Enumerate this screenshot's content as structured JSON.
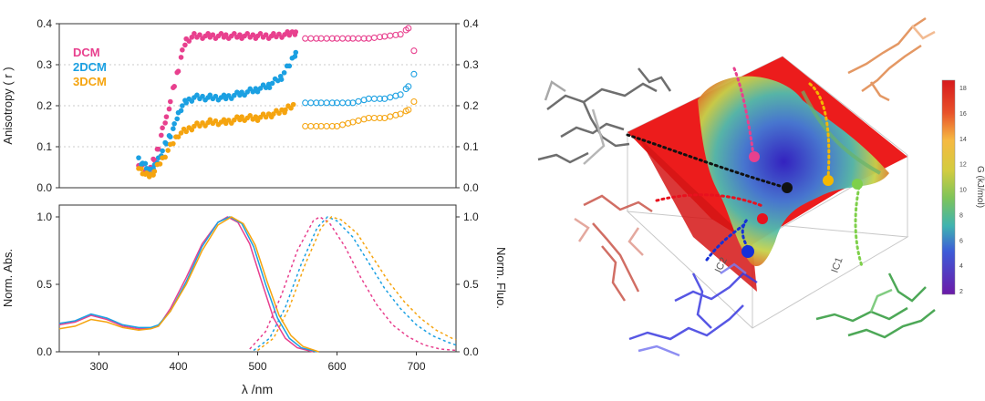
{
  "chart_data": [
    {
      "type": "scatter",
      "title": "",
      "xlabel": "",
      "ylabel": "Anisotropy ( r )",
      "xlim": [
        250,
        750
      ],
      "ylim": [
        0,
        0.4
      ],
      "yticks": [
        "0.0",
        "0.1",
        "0.2",
        "0.3",
        "0.4"
      ],
      "grid": "horizontal dotted",
      "legend_position": "top-left",
      "series": [
        {
          "name": "DCM",
          "color": "#e8408e",
          "filled_points": [
            [
              350,
              0.06
            ],
            [
              355,
              0.05
            ],
            [
              360,
              0.04
            ],
            [
              365,
              0.05
            ],
            [
              370,
              0.07
            ],
            [
              375,
              0.1
            ],
            [
              380,
              0.14
            ],
            [
              385,
              0.17
            ],
            [
              390,
              0.21
            ],
            [
              395,
              0.25
            ],
            [
              400,
              0.29
            ],
            [
              405,
              0.33
            ],
            [
              410,
              0.36
            ],
            [
              420,
              0.37
            ],
            [
              440,
              0.37
            ],
            [
              460,
              0.37
            ],
            [
              480,
              0.37
            ],
            [
              500,
              0.37
            ],
            [
              520,
              0.37
            ],
            [
              540,
              0.375
            ],
            [
              548,
              0.38
            ]
          ],
          "open_points": [
            [
              560,
              0.37
            ],
            [
              580,
              0.37
            ],
            [
              600,
              0.37
            ],
            [
              620,
              0.37
            ],
            [
              640,
              0.37
            ],
            [
              660,
              0.375
            ],
            [
              680,
              0.38
            ],
            [
              690,
              0.395
            ],
            [
              697,
              0.34
            ]
          ]
        },
        {
          "name": "2DCM",
          "color": "#1ba0e2",
          "filled_points": [
            [
              350,
              0.07
            ],
            [
              355,
              0.06
            ],
            [
              360,
              0.05
            ],
            [
              365,
              0.04
            ],
            [
              370,
              0.05
            ],
            [
              375,
              0.07
            ],
            [
              380,
              0.09
            ],
            [
              385,
              0.11
            ],
            [
              390,
              0.13
            ],
            [
              395,
              0.15
            ],
            [
              400,
              0.18
            ],
            [
              405,
              0.2
            ],
            [
              410,
              0.21
            ],
            [
              420,
              0.22
            ],
            [
              440,
              0.22
            ],
            [
              460,
              0.22
            ],
            [
              480,
              0.23
            ],
            [
              500,
              0.24
            ],
            [
              515,
              0.25
            ],
            [
              530,
              0.27
            ],
            [
              540,
              0.3
            ],
            [
              548,
              0.33
            ]
          ],
          "open_points": [
            [
              560,
              0.21
            ],
            [
              580,
              0.21
            ],
            [
              600,
              0.21
            ],
            [
              620,
              0.21
            ],
            [
              640,
              0.22
            ],
            [
              660,
              0.22
            ],
            [
              680,
              0.23
            ],
            [
              690,
              0.25
            ],
            [
              697,
              0.28
            ]
          ]
        },
        {
          "name": "3DCM",
          "color": "#f5a40f",
          "filled_points": [
            [
              350,
              0.05
            ],
            [
              355,
              0.04
            ],
            [
              360,
              0.03
            ],
            [
              365,
              0.03
            ],
            [
              370,
              0.04
            ],
            [
              380,
              0.07
            ],
            [
              390,
              0.1
            ],
            [
              400,
              0.13
            ],
            [
              410,
              0.14
            ],
            [
              420,
              0.15
            ],
            [
              440,
              0.16
            ],
            [
              460,
              0.16
            ],
            [
              480,
              0.17
            ],
            [
              500,
              0.17
            ],
            [
              520,
              0.18
            ],
            [
              535,
              0.19
            ],
            [
              545,
              0.2
            ]
          ],
          "open_points": [
            [
              560,
              0.15
            ],
            [
              580,
              0.15
            ],
            [
              600,
              0.15
            ],
            [
              620,
              0.16
            ],
            [
              640,
              0.17
            ],
            [
              660,
              0.17
            ],
            [
              680,
              0.18
            ],
            [
              690,
              0.19
            ],
            [
              697,
              0.21
            ]
          ]
        }
      ]
    },
    {
      "type": "line",
      "title": "",
      "xlabel": "λ /nm",
      "ylabel_left": "Norm. Abs.",
      "ylabel_right": "Norm. Fluo.",
      "xlim": [
        250,
        750
      ],
      "ylim": [
        0,
        1.0
      ],
      "xticks": [
        "300",
        "400",
        "500",
        "600",
        "700"
      ],
      "yticks": [
        "0.0",
        "0.5",
        "1.0"
      ],
      "series": [
        {
          "name": "",
          "kind": "absorption",
          "color": "#e8408e",
          "points": [
            [
              250,
              0.2
            ],
            [
              270,
              0.22
            ],
            [
              290,
              0.27
            ],
            [
              310,
              0.24
            ],
            [
              330,
              0.19
            ],
            [
              350,
              0.17
            ],
            [
              365,
              0.17
            ],
            [
              375,
              0.19
            ],
            [
              390,
              0.32
            ],
            [
              410,
              0.55
            ],
            [
              430,
              0.8
            ],
            [
              450,
              0.96
            ],
            [
              462,
              1.0
            ],
            [
              475,
              0.96
            ],
            [
              490,
              0.8
            ],
            [
              505,
              0.52
            ],
            [
              520,
              0.25
            ],
            [
              535,
              0.1
            ],
            [
              550,
              0.03
            ],
            [
              570,
              0.0
            ]
          ]
        },
        {
          "name": "",
          "kind": "absorption",
          "color": "#1ba0e2",
          "points": [
            [
              250,
              0.21
            ],
            [
              270,
              0.23
            ],
            [
              290,
              0.28
            ],
            [
              310,
              0.25
            ],
            [
              330,
              0.2
            ],
            [
              350,
              0.18
            ],
            [
              365,
              0.18
            ],
            [
              375,
              0.2
            ],
            [
              390,
              0.3
            ],
            [
              410,
              0.52
            ],
            [
              430,
              0.78
            ],
            [
              450,
              0.96
            ],
            [
              465,
              1.0
            ],
            [
              480,
              0.95
            ],
            [
              495,
              0.78
            ],
            [
              510,
              0.5
            ],
            [
              525,
              0.25
            ],
            [
              540,
              0.1
            ],
            [
              555,
              0.03
            ],
            [
              575,
              0.0
            ]
          ]
        },
        {
          "name": "",
          "kind": "absorption",
          "color": "#f5a40f",
          "points": [
            [
              250,
              0.17
            ],
            [
              270,
              0.19
            ],
            [
              290,
              0.24
            ],
            [
              310,
              0.22
            ],
            [
              330,
              0.18
            ],
            [
              350,
              0.16
            ],
            [
              365,
              0.17
            ],
            [
              375,
              0.19
            ],
            [
              390,
              0.3
            ],
            [
              410,
              0.5
            ],
            [
              430,
              0.75
            ],
            [
              450,
              0.94
            ],
            [
              467,
              1.0
            ],
            [
              482,
              0.95
            ],
            [
              497,
              0.79
            ],
            [
              512,
              0.52
            ],
            [
              527,
              0.27
            ],
            [
              542,
              0.12
            ],
            [
              557,
              0.04
            ],
            [
              577,
              0.0
            ]
          ]
        },
        {
          "name": "",
          "kind": "fluorescence",
          "color": "#e8408e",
          "points": [
            [
              490,
              0.02
            ],
            [
              510,
              0.15
            ],
            [
              530,
              0.42
            ],
            [
              550,
              0.75
            ],
            [
              570,
              0.97
            ],
            [
              578,
              1.0
            ],
            [
              590,
              0.96
            ],
            [
              610,
              0.78
            ],
            [
              630,
              0.55
            ],
            [
              650,
              0.35
            ],
            [
              670,
              0.2
            ],
            [
              690,
              0.11
            ],
            [
              710,
              0.05
            ],
            [
              730,
              0.02
            ],
            [
              750,
              0.01
            ]
          ]
        },
        {
          "name": "",
          "kind": "fluorescence",
          "color": "#1ba0e2",
          "points": [
            [
              495,
              0.01
            ],
            [
              515,
              0.1
            ],
            [
              535,
              0.33
            ],
            [
              555,
              0.65
            ],
            [
              575,
              0.92
            ],
            [
              588,
              1.0
            ],
            [
              600,
              0.97
            ],
            [
              620,
              0.85
            ],
            [
              640,
              0.66
            ],
            [
              660,
              0.47
            ],
            [
              680,
              0.32
            ],
            [
              700,
              0.2
            ],
            [
              720,
              0.12
            ],
            [
              740,
              0.07
            ],
            [
              750,
              0.05
            ]
          ]
        },
        {
          "name": "",
          "kind": "fluorescence",
          "color": "#f5a40f",
          "points": [
            [
              500,
              0.01
            ],
            [
              520,
              0.1
            ],
            [
              540,
              0.33
            ],
            [
              560,
              0.65
            ],
            [
              580,
              0.92
            ],
            [
              593,
              1.0
            ],
            [
              605,
              0.98
            ],
            [
              625,
              0.88
            ],
            [
              645,
              0.7
            ],
            [
              665,
              0.52
            ],
            [
              685,
              0.37
            ],
            [
              705,
              0.25
            ],
            [
              725,
              0.16
            ],
            [
              745,
              0.1
            ],
            [
              750,
              0.09
            ]
          ]
        }
      ]
    }
  ],
  "fes_panel": {
    "axis_label_ic1": "IC1",
    "axis_label_ic2": "IC2",
    "colorbar_label": "G (kJ/mol)",
    "colorbar_ticks": [
      "18",
      "16",
      "14",
      "12",
      "10",
      "8",
      "6",
      "4",
      "2"
    ],
    "colorbar_colors": [
      "#d7191c",
      "#e8512a",
      "#f18a3c",
      "#f6b942",
      "#d3cc3f",
      "#9bc94d",
      "#5fbf7a",
      "#3fb3b0",
      "#3d8fd6",
      "#3d5bd8",
      "#3b35c9",
      "#6b1aa8"
    ],
    "state_colors": {
      "black": "#111111",
      "pink": "#e8408e",
      "orange": "#f5b800",
      "green": "#7ed04a",
      "red": "#e8111e",
      "blue": "#1530d8",
      "gray": "#555555",
      "brown": "#e0874a",
      "salmon": "#c9554a",
      "purple_blue": "#4444dd",
      "forest": "#2f9a3a"
    }
  }
}
